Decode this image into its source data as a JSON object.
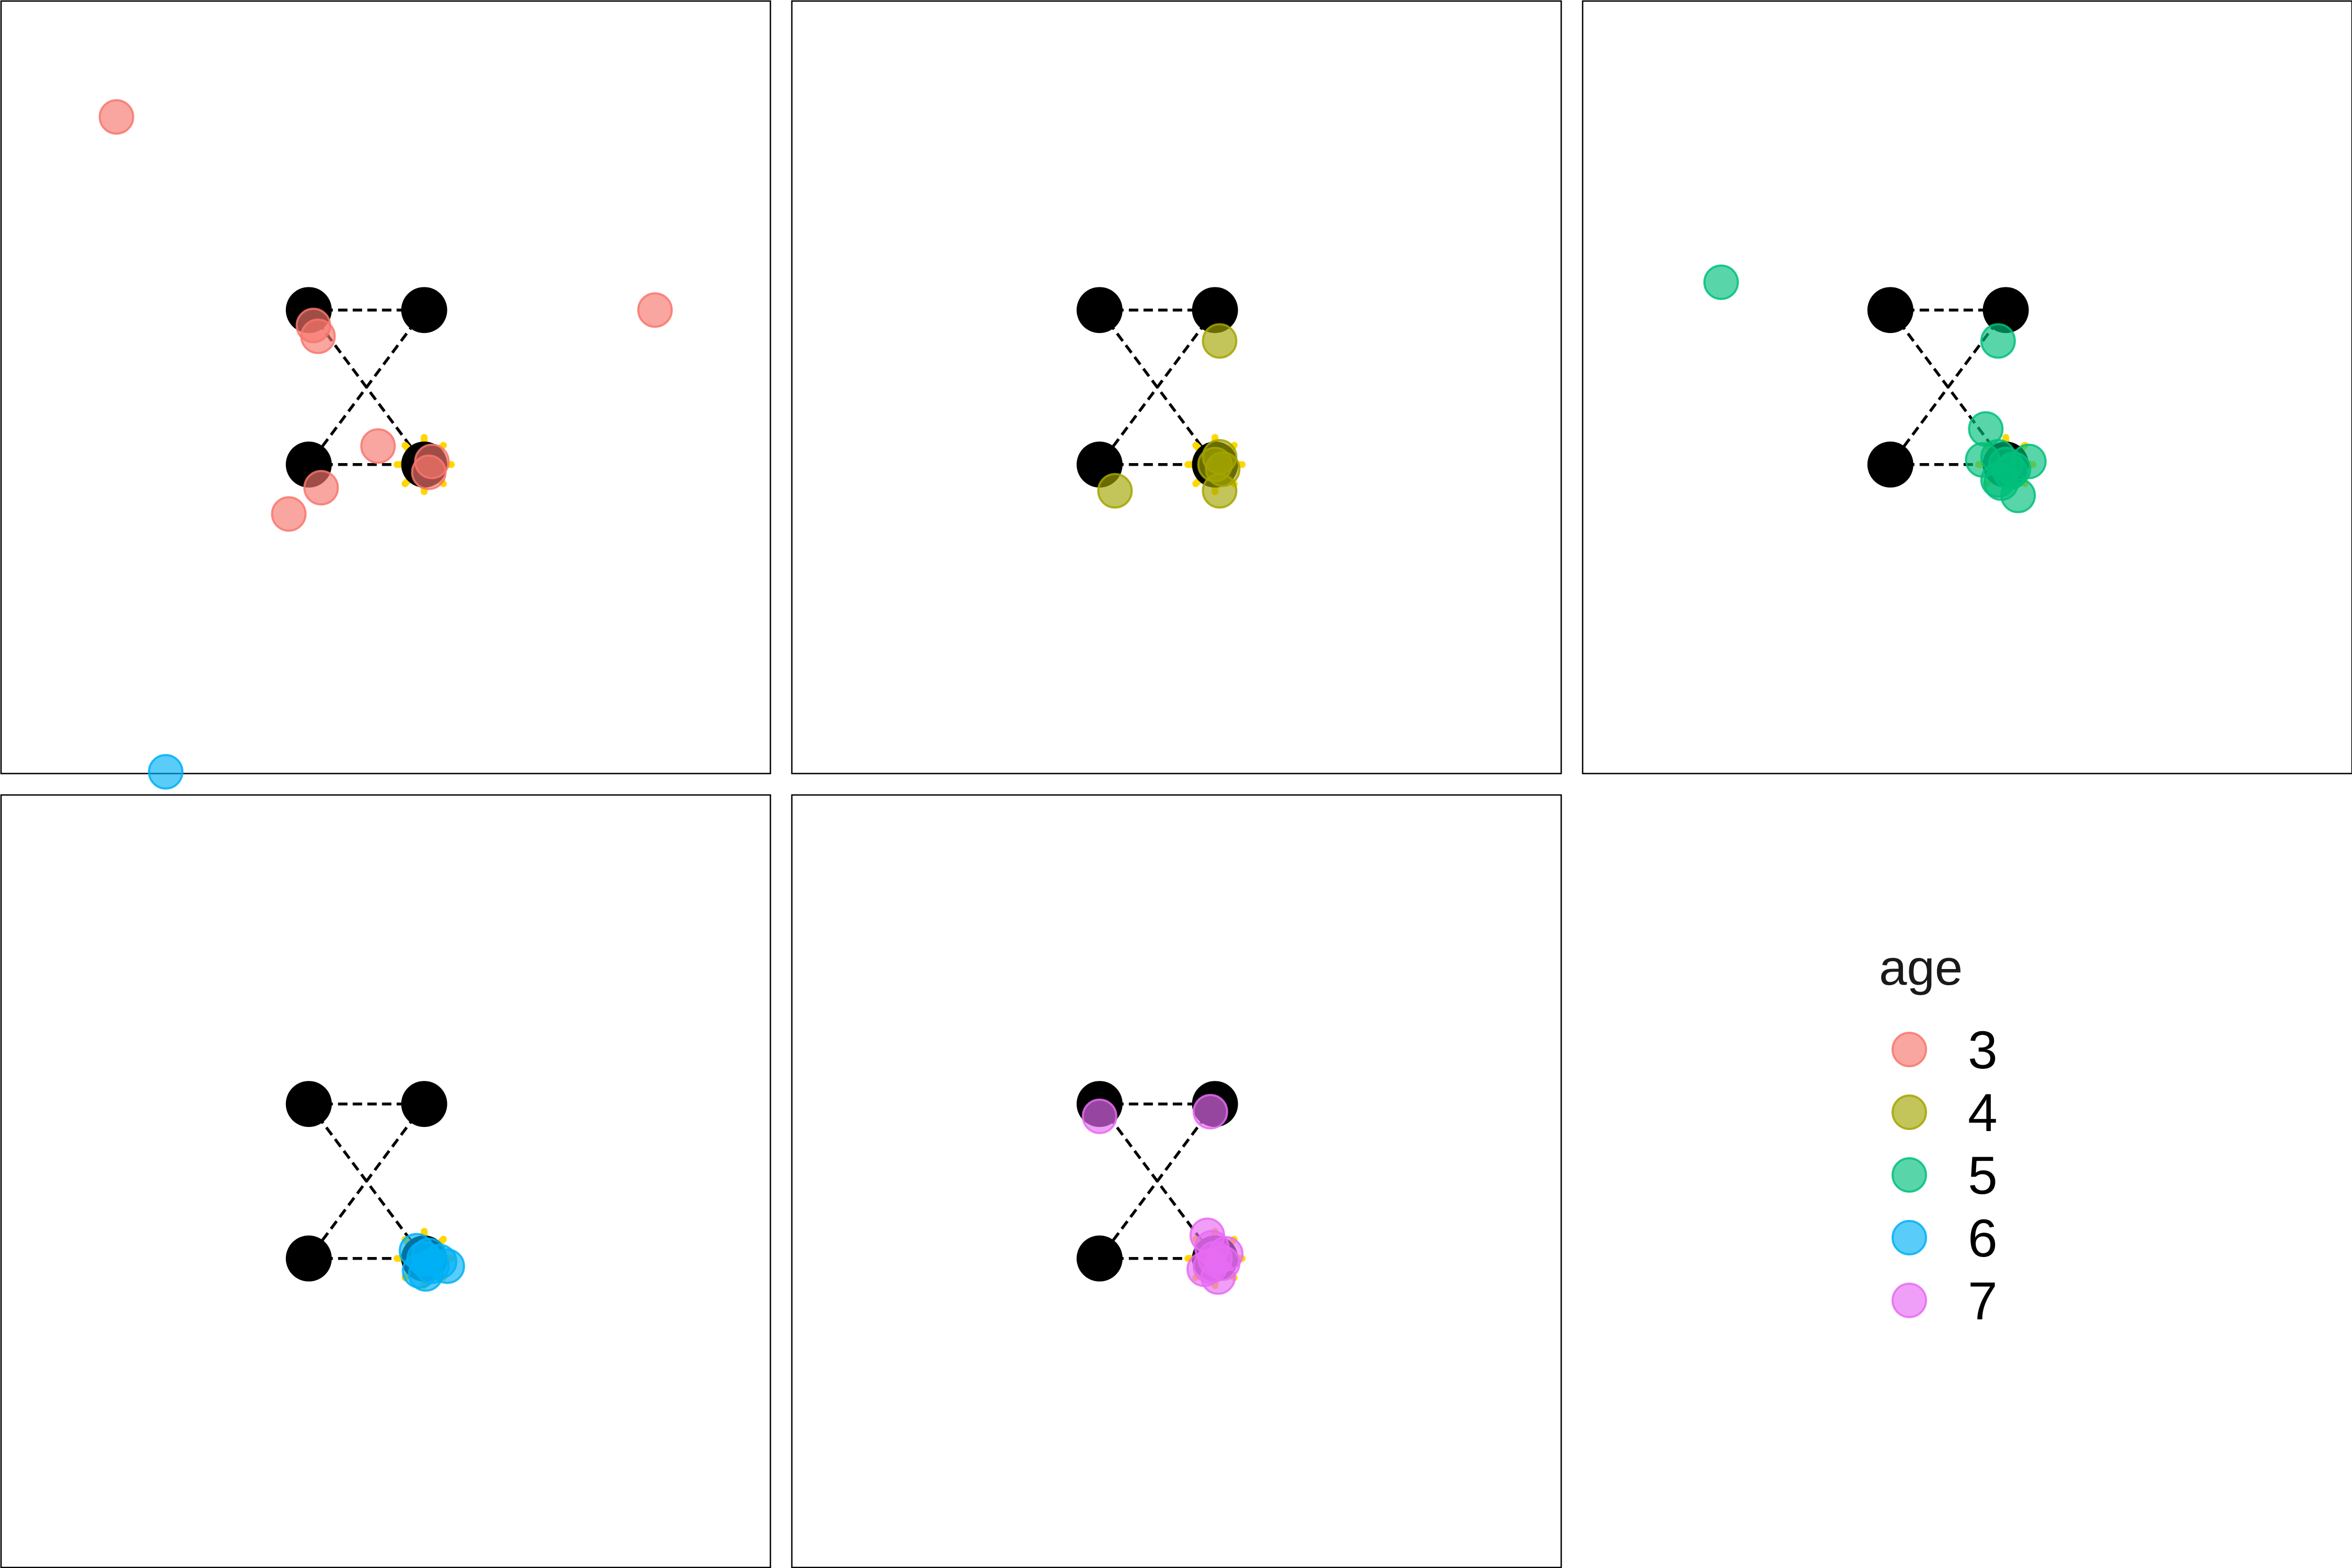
{
  "chart_data": {
    "type": "scatter",
    "legend": {
      "title": "age",
      "position": "right",
      "entries": [
        "3",
        "4",
        "5",
        "6",
        "7"
      ]
    },
    "colors": {
      "3": "#F8766D",
      "4": "#A3A500",
      "5": "#00BF7D",
      "6": "#00B0F6",
      "7": "#E76BF3"
    },
    "axes": {
      "visible": false,
      "xlim": [
        -2,
        3
      ],
      "ylim": [
        -3,
        2
      ]
    },
    "grid": false,
    "reference": {
      "corners": [
        [
          0,
          0
        ],
        [
          0.75,
          0
        ],
        [
          0,
          -1
        ],
        [
          0.75,
          -1
        ]
      ],
      "target": [
        0.75,
        -1
      ],
      "dashed_links": [
        [
          0,
          1
        ],
        [
          2,
          3
        ],
        [
          0,
          3
        ],
        [
          1,
          2
        ]
      ]
    },
    "panels": [
      {
        "age": "3",
        "points": [
          [
            -1.25,
            1.25
          ],
          [
            0.03,
            -0.1
          ],
          [
            0.06,
            -0.17
          ],
          [
            0.45,
            -0.88
          ],
          [
            0.78,
            -1.05
          ],
          [
            0.8,
            -0.98
          ],
          [
            0.08,
            -1.15
          ],
          [
            -0.13,
            -1.32
          ],
          [
            2.25,
            0
          ]
        ]
      },
      {
        "age": "4",
        "points": [
          [
            0.78,
            -0.2
          ],
          [
            0.78,
            -0.95
          ],
          [
            0.75,
            -1.0
          ],
          [
            0.8,
            -1.03
          ],
          [
            0.1,
            -1.17
          ],
          [
            0.78,
            -1.17
          ]
        ]
      },
      {
        "age": "5",
        "points": [
          [
            -1.1,
            0.18
          ],
          [
            0.7,
            -0.2
          ],
          [
            0.62,
            -0.77
          ],
          [
            0.6,
            -0.97
          ],
          [
            0.7,
            -0.95
          ],
          [
            0.75,
            -1.0
          ],
          [
            0.8,
            -1.03
          ],
          [
            0.9,
            -0.98
          ],
          [
            0.72,
            -1.12
          ],
          [
            0.83,
            -1.2
          ],
          [
            0.7,
            -1.1
          ],
          [
            0.78,
            -1.05
          ]
        ]
      },
      {
        "age": "6",
        "points": [
          [
            -0.93,
            2.15
          ],
          [
            0.7,
            -0.95
          ],
          [
            0.75,
            -1.0
          ],
          [
            0.8,
            -1.05
          ],
          [
            0.85,
            -1.02
          ],
          [
            0.72,
            -1.08
          ],
          [
            0.78,
            -0.98
          ],
          [
            0.9,
            -1.05
          ],
          [
            0.76,
            -1.1
          ]
        ]
      },
      {
        "age": "7",
        "points": [
          [
            0,
            -0.08
          ],
          [
            0.72,
            -0.05
          ],
          [
            0.7,
            -0.85
          ],
          [
            0.75,
            -1.0
          ],
          [
            0.8,
            -1.03
          ],
          [
            0.72,
            -1.05
          ],
          [
            0.82,
            -0.97
          ],
          [
            0.77,
            -1.12
          ],
          [
            0.68,
            -1.07
          ],
          [
            0.73,
            -0.93
          ]
        ]
      }
    ]
  }
}
